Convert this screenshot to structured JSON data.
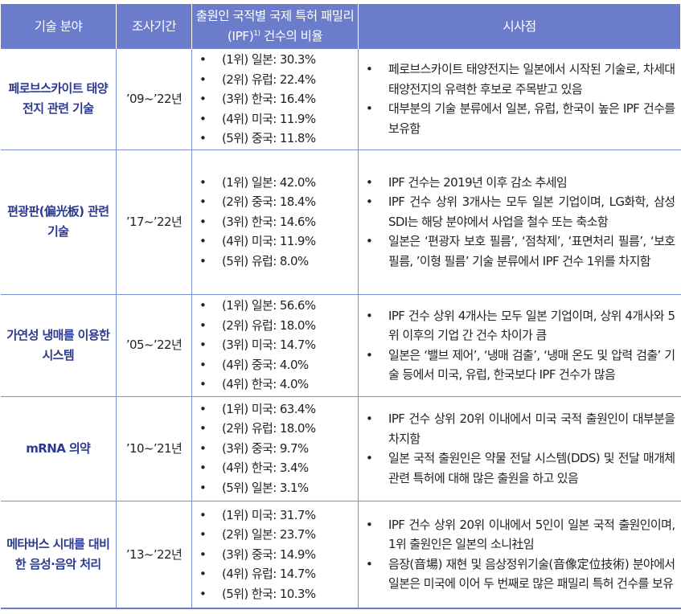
{
  "headers": [
    "기술 분야",
    "조사기간",
    "출원인 국적별 국제 특허 패밀리(IPF)1) 건수의 비율",
    "시사점"
  ],
  "header_ratio_parts": {
    "before": "출원인 국적별 국제 특허 패밀리(IPF)",
    "sup": "1)",
    "after": " 건수의 비율"
  },
  "rows": [
    {
      "field": "페로브스카이트 태양전지 관련 기술",
      "period": "’09~’22년",
      "ratios": [
        "(1위) 일본: 30.3%",
        "(2위) 유럽: 22.4%",
        "(3위) 한국: 16.4%",
        "(4위) 미국: 11.9%",
        "(5위) 중국: 11.8%"
      ],
      "implications": [
        "페로브스카이트 태양전지는 일본에서 시작된 기술로, 차세대 태양전지의 유력한 후보로 주목받고 있음",
        "대부분의 기술 분류에서 일본, 유럽, 한국이 높은 IPF 건수를 보유함"
      ]
    },
    {
      "field": "편광판(偏光板) 관련 기술",
      "period": "’17~’22년",
      "ratios": [
        "(1위) 일본: 42.0%",
        "(2위) 중국: 18.4%",
        "(3위) 한국: 14.6%",
        "(4위) 미국: 11.9%",
        "(5위) 유럽: 8.0%"
      ],
      "implications": [
        "IPF 건수는 2019년 이후 감소 추세임",
        "IPF 건수 상위 3개사는 모두 일본 기업이며, LG화학, 삼성SDI는 해당 분야에서 사업을 철수 또는 축소함",
        "일본은 ‘편광자 보호 필름’, ‘점착제’, ‘표면처리 필름’, ‘보호 필름, ’이형 필름’ 기술 분류에서 IPF 건수 1위를 차지함"
      ]
    },
    {
      "field": "가연성 냉매를 이용한 시스템",
      "period": "’05~’22년",
      "ratios": [
        "(1위) 일본: 56.6%",
        "(2위) 유럽: 18.0%",
        "(3위) 미국: 14.7%",
        "(4위) 중국: 4.0%",
        "(4위) 한국: 4.0%"
      ],
      "implications": [
        "IPF 건수 상위 4개사는 모두 일본 기업이며, 상위 4개사와 5위 이후의 기업 간 건수 차이가 큼",
        "일본은 ‘밸브 제어’, ‘냉매 검출’, ‘냉매 온도 및 압력 검출’ 기술 등에서 미국, 유럽, 한국보다 IPF 건수가 많음"
      ]
    },
    {
      "field": "mRNA 의약",
      "period": "’10~’21년",
      "ratios": [
        "(1위) 미국: 63.4%",
        "(2위) 유럽: 18.0%",
        "(3위) 중국: 9.7%",
        "(4위) 한국: 3.4%",
        "(5위) 일본: 3.1%"
      ],
      "implications": [
        "IPF 건수 상위 20위 이내에서 미국 국적 출원인이 대부분을 차지함",
        "일본 국적 출원인은 약물 전달 시스템(DDS) 및 전달 매개체 관련 특허에 대해 많은 출원을 하고 있음"
      ]
    },
    {
      "field": "메타버스 시대를 대비한 음성·음악 처리",
      "period": "’13~’22년",
      "ratios": [
        "(1위) 미국: 31.7%",
        "(2위) 일본: 23.7%",
        "(3위) 중국: 14.9%",
        "(4위) 유럽: 14.7%",
        "(5위) 한국: 10.3%"
      ],
      "implications": [
        "IPF 건수 상위 20위 이내에서 5인이 일본 국적 출원인이며, 1위 출원인은 일본의 소니社임",
        "음장(音場) 재현 및 음상정위기술(音像定位技術) 분야에서 일본은 미국에 이어 두 번째로 많은 패밀리 특허 건수를 보유"
      ]
    }
  ]
}
